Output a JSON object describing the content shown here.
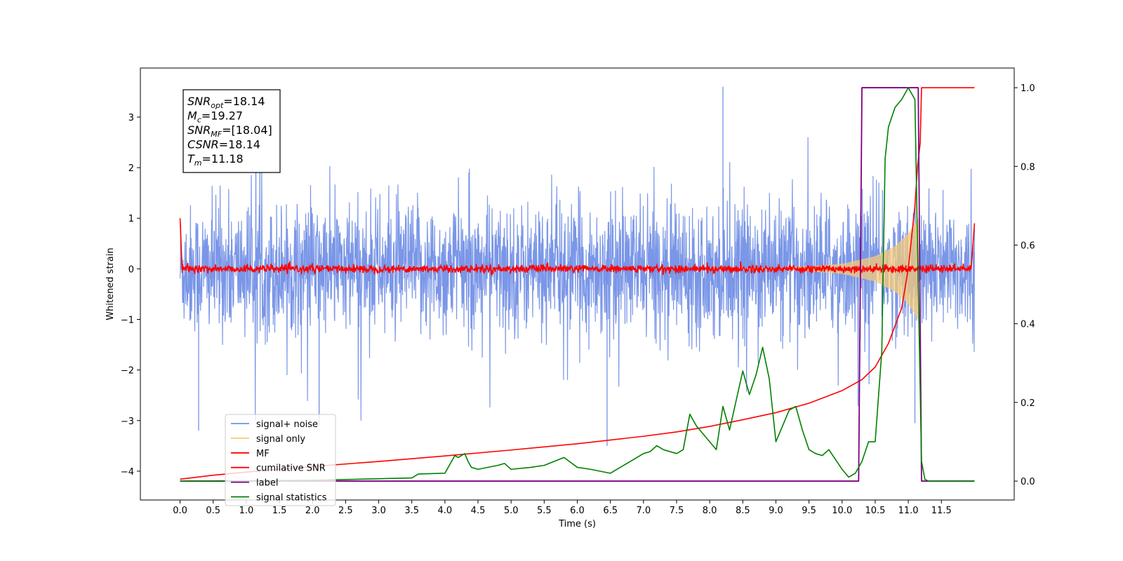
{
  "chart_data": {
    "type": "line",
    "xlabel": "Time (s)",
    "ylabel": "Whitened strain",
    "xlim": [
      -0.6,
      12.6
    ],
    "ylim_left": [
      -4.57,
      3.97
    ],
    "ylim_right": [
      -0.048,
      1.05
    ],
    "x_ticks": [
      0.0,
      0.5,
      1.0,
      1.5,
      2.0,
      2.5,
      3.0,
      3.5,
      4.0,
      4.5,
      5.0,
      5.5,
      6.0,
      6.5,
      7.0,
      7.5,
      8.0,
      8.5,
      9.0,
      9.5,
      10.0,
      10.5,
      11.0,
      11.5
    ],
    "x_tick_labels": [
      "0.0",
      "0.5",
      "1.0",
      "1.5",
      "2.0",
      "2.5",
      "3.0",
      "3.5",
      "4.0",
      "4.5",
      "5.0",
      "5.5",
      "6.0",
      "6.5",
      "7.0",
      "7.5",
      "8.0",
      "8.5",
      "9.0",
      "9.5",
      "10.0",
      "10.5",
      "11.0",
      "11.5"
    ],
    "y_left_ticks": [
      3,
      2,
      1,
      0,
      -1,
      -2,
      -3,
      -4
    ],
    "y_left_tick_labels": [
      "3",
      "2",
      "1",
      "0",
      "−1",
      "−2",
      "−3",
      "−4"
    ],
    "y_right_ticks": [
      1.0,
      0.8,
      0.6,
      0.4,
      0.2,
      0.0
    ],
    "y_right_tick_labels": [
      "1.0",
      "0.8",
      "0.6",
      "0.4",
      "0.2",
      "0.0"
    ],
    "annotation": [
      {
        "main": "SNR",
        "sub": "opt",
        "rest": "=18.14"
      },
      {
        "main": "M",
        "sub": "c",
        "rest": "=19.27"
      },
      {
        "main": "SNR",
        "sub": "MF",
        "rest": "=[18.04]"
      },
      {
        "main": "CSNR",
        "sub": "",
        "rest": "=18.14"
      },
      {
        "main": "T",
        "sub": "m",
        "rest": "=11.18"
      }
    ],
    "legend": {
      "placement": "lower-left",
      "entries": [
        {
          "label": "signal+ noise",
          "color": "#7390e6"
        },
        {
          "label": "signal only",
          "color": "#f5c97a"
        },
        {
          "label": "MF",
          "color": "#ff0000"
        },
        {
          "label": "cumilative SNR",
          "color": "#ff0000"
        },
        {
          "label": "label",
          "color": "#800080"
        },
        {
          "label": "signal statistics",
          "color": "#008000"
        }
      ]
    },
    "series": [
      {
        "name": "signal+ noise",
        "axis": "left",
        "color": "#7390e6",
        "description": "whitened noise, approx. +/-1 sigma band with spikes to +3.6 / -3.5",
        "x_start": 0.0,
        "x_end": 12.0,
        "band": [
          -1.0,
          1.0
        ],
        "notable_peaks": [
          {
            "x": 8.2,
            "y": 3.6
          },
          {
            "x": 6.45,
            "y": -3.5
          },
          {
            "x": 0.28,
            "y": -3.2
          },
          {
            "x": 2.1,
            "y": -3.1
          },
          {
            "x": 11.1,
            "y": -3.05
          }
        ]
      },
      {
        "name": "signal only",
        "axis": "left",
        "color": "#f5c97a",
        "description": "chirp with growing amplitude up to merger",
        "x": [
          9.0,
          9.5,
          10.0,
          10.5,
          10.8,
          11.0,
          11.1,
          11.15
        ],
        "amplitude": [
          0.02,
          0.05,
          0.1,
          0.25,
          0.45,
          0.7,
          0.9,
          1.0
        ]
      },
      {
        "name": "MF",
        "axis": "left",
        "color": "#ff0000",
        "description": "matched filter output, near zero with small fluctuations, edge spikes at start and end",
        "x": [
          0.0,
          0.03,
          11.95,
          12.0
        ],
        "y": [
          1.0,
          0.0,
          0.0,
          0.9
        ],
        "noise_amplitude": 0.07
      },
      {
        "name": "cumilative SNR",
        "axis": "right",
        "color": "#ff0000",
        "x": [
          0.0,
          0.5,
          1.0,
          2.0,
          3.0,
          4.0,
          5.0,
          6.0,
          7.0,
          7.5,
          8.0,
          8.5,
          9.0,
          9.5,
          10.0,
          10.3,
          10.5,
          10.7,
          10.9,
          11.0,
          11.1,
          11.14,
          11.18,
          11.2,
          12.0
        ],
        "y": [
          0.005,
          0.015,
          0.023,
          0.037,
          0.05,
          0.064,
          0.079,
          0.095,
          0.114,
          0.125,
          0.139,
          0.156,
          0.174,
          0.198,
          0.23,
          0.258,
          0.29,
          0.35,
          0.44,
          0.54,
          0.7,
          0.8,
          0.86,
          1.0,
          1.0
        ]
      },
      {
        "name": "label",
        "axis": "right",
        "color": "#800080",
        "x": [
          0.0,
          10.25,
          10.3,
          11.15,
          11.2,
          12.0
        ],
        "y": [
          0.0,
          0.0,
          1.0,
          1.0,
          0.0,
          0.0
        ]
      },
      {
        "name": "signal statistics",
        "axis": "right",
        "color": "#008000",
        "x": [
          0.0,
          1.0,
          2.0,
          2.5,
          3.0,
          3.5,
          3.6,
          4.0,
          4.15,
          4.2,
          4.3,
          4.35,
          4.4,
          4.5,
          4.8,
          4.9,
          5.0,
          5.3,
          5.5,
          5.8,
          6.0,
          6.2,
          6.5,
          6.6,
          6.8,
          7.0,
          7.1,
          7.2,
          7.3,
          7.5,
          7.6,
          7.7,
          7.8,
          7.9,
          8.0,
          8.1,
          8.2,
          8.3,
          8.5,
          8.6,
          8.7,
          8.8,
          8.9,
          9.0,
          9.1,
          9.2,
          9.3,
          9.4,
          9.5,
          9.6,
          9.7,
          9.8,
          10.0,
          10.1,
          10.2,
          10.3,
          10.4,
          10.5,
          10.6,
          10.65,
          10.7,
          10.8,
          10.9,
          11.0,
          11.1,
          11.15,
          11.2,
          11.25,
          11.3,
          12.0
        ],
        "y": [
          0.0,
          0.001,
          0.002,
          0.004,
          0.006,
          0.008,
          0.018,
          0.02,
          0.065,
          0.06,
          0.07,
          0.05,
          0.035,
          0.03,
          0.04,
          0.045,
          0.03,
          0.035,
          0.04,
          0.06,
          0.035,
          0.03,
          0.02,
          0.03,
          0.05,
          0.07,
          0.075,
          0.09,
          0.08,
          0.07,
          0.08,
          0.17,
          0.14,
          0.12,
          0.1,
          0.08,
          0.19,
          0.13,
          0.28,
          0.22,
          0.27,
          0.34,
          0.26,
          0.1,
          0.14,
          0.18,
          0.19,
          0.13,
          0.08,
          0.07,
          0.065,
          0.08,
          0.03,
          0.01,
          0.02,
          0.05,
          0.1,
          0.1,
          0.33,
          0.82,
          0.9,
          0.95,
          0.97,
          1.0,
          0.97,
          0.5,
          0.05,
          0.005,
          0.0,
          0.0
        ]
      }
    ]
  }
}
